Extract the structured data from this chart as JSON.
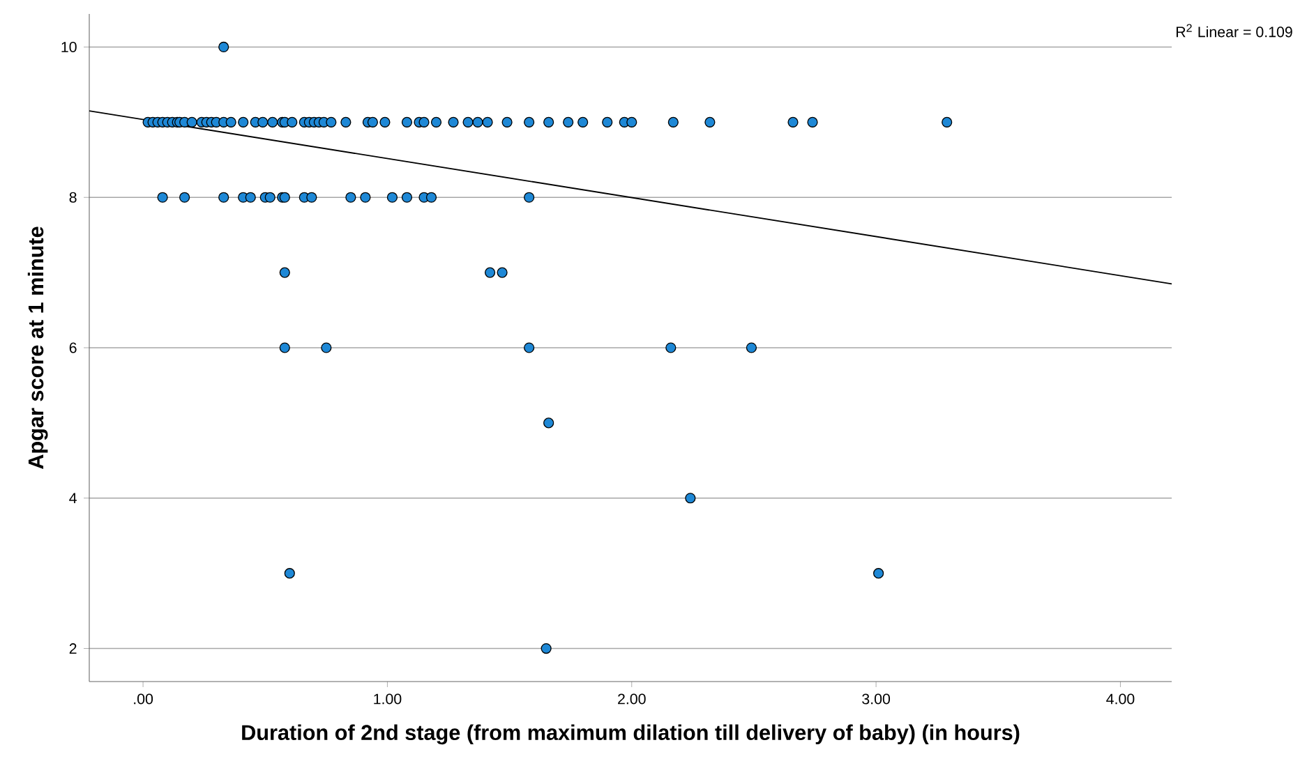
{
  "chart_data": {
    "type": "scatter",
    "xlabel": "Duration of 2nd stage (from maximum dilation till delivery of baby) (in hours)",
    "ylabel": "Apgar score at 1 minute",
    "annotations": [
      "R$^{2}$ Linear = 0.109"
    ],
    "xlim": [
      -0.22,
      4.21
    ],
    "ylim": [
      1.56,
      10.44
    ],
    "xticks": [
      {
        "value": 0,
        "label": ".00"
      },
      {
        "value": 1,
        "label": "1.00"
      },
      {
        "value": 2,
        "label": "2.00"
      },
      {
        "value": 3,
        "label": "3.00"
      },
      {
        "value": 4,
        "label": "4.00"
      }
    ],
    "yticks": [
      2,
      4,
      6,
      8,
      10
    ],
    "grid": "y",
    "series": [
      {
        "marker": "circle",
        "color": "#1e88d6",
        "x": [
          0.02,
          0.04,
          0.06,
          0.08,
          0.1,
          0.12,
          0.14,
          0.15,
          0.17,
          0.2,
          0.24,
          0.26,
          0.28,
          0.3,
          0.33,
          0.36,
          0.41,
          0.46,
          0.49,
          0.53,
          0.57,
          0.58,
          0.61,
          0.66,
          0.68,
          0.7,
          0.72,
          0.74,
          0.77,
          0.83,
          0.92,
          0.94,
          0.99,
          1.08,
          1.13,
          1.15,
          1.2,
          1.27,
          1.33,
          1.37,
          1.41,
          1.49,
          1.58,
          1.66,
          1.74,
          1.8,
          1.9,
          1.97,
          2.0,
          2.17,
          2.32,
          2.66,
          2.74,
          3.29,
          0.33,
          0.08,
          0.17,
          0.33,
          0.41,
          0.44,
          0.5,
          0.52,
          0.57,
          0.58,
          0.66,
          0.69,
          0.85,
          0.91,
          1.02,
          1.08,
          1.15,
          1.18,
          1.58,
          0.58,
          1.42,
          1.47,
          0.58,
          0.75,
          1.58,
          2.16,
          2.49,
          1.66,
          2.24,
          0.6,
          3.01,
          1.65
        ],
        "values": [
          9,
          9,
          9,
          9,
          9,
          9,
          9,
          9,
          9,
          9,
          9,
          9,
          9,
          9,
          9,
          9,
          9,
          9,
          9,
          9,
          9,
          9,
          9,
          9,
          9,
          9,
          9,
          9,
          9,
          9,
          9,
          9,
          9,
          9,
          9,
          9,
          9,
          9,
          9,
          9,
          9,
          9,
          9,
          9,
          9,
          9,
          9,
          9,
          9,
          9,
          9,
          9,
          9,
          9,
          10,
          8,
          8,
          8,
          8,
          8,
          8,
          8,
          8,
          8,
          8,
          8,
          8,
          8,
          8,
          8,
          8,
          8,
          8,
          7,
          7,
          7,
          6,
          6,
          6,
          6,
          6,
          5,
          4,
          3,
          3,
          2
        ]
      },
      {
        "type": "line",
        "marker": "none",
        "color": "#000000",
        "line_style": "solid",
        "x": [
          -0.22,
          4.21
        ],
        "values": [
          9.15,
          6.85
        ]
      }
    ]
  }
}
